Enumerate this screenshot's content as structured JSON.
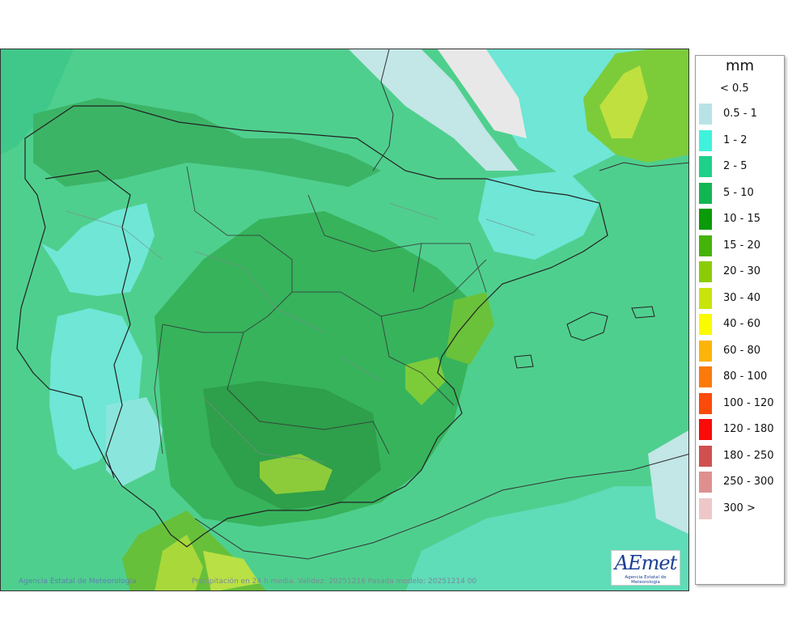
{
  "map": {
    "credit": "Agencia Estatal de Meteorología",
    "model_info": "Precipitación en 24 h media. Validez: 20251216 Pasada modelo: 20251214 00",
    "logo_text": "AEmet",
    "logo_subtitle": "Agencia Estatal de Meteorología",
    "background_color": "#4fcf8e"
  },
  "legend": {
    "title": "mm",
    "lowest_label": "< 0.5",
    "items": [
      {
        "label": "0.5 - 1",
        "color": "#b7e3e6"
      },
      {
        "label": "1 - 2",
        "color": "#3ff2dc"
      },
      {
        "label": "2 - 5",
        "color": "#1fd08a"
      },
      {
        "label": "5 - 10",
        "color": "#11b652"
      },
      {
        "label": "10 - 15",
        "color": "#0a9a0a"
      },
      {
        "label": "15 - 20",
        "color": "#45b30a"
      },
      {
        "label": "20 - 30",
        "color": "#8ccc06"
      },
      {
        "label": "30 - 40",
        "color": "#c9e40a"
      },
      {
        "label": "40 - 60",
        "color": "#fafa00"
      },
      {
        "label": "60 - 80",
        "color": "#fcb40a"
      },
      {
        "label": "80 - 100",
        "color": "#fb7a0a"
      },
      {
        "label": "100 - 120",
        "color": "#fb4a0a"
      },
      {
        "label": "120 - 180",
        "color": "#fb0a0a"
      },
      {
        "label": "180 - 250",
        "color": "#cf5050"
      },
      {
        "label": "250 - 300",
        "color": "#de9090"
      },
      {
        "label": "300 >",
        "color": "#eec8c8"
      }
    ]
  }
}
